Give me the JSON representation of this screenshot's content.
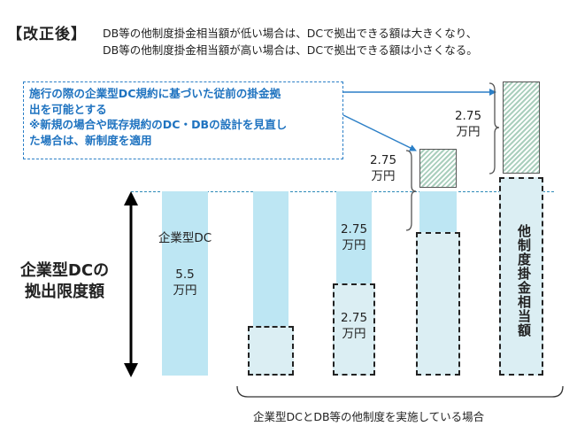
{
  "header": {
    "tag": "【改正後】",
    "line1": "DB等の他制度掛金相当額が低い場合は、DCで拠出できる額は大きくなり、",
    "line2": "DB等の他制度掛金相当額が高い場合は、DCで拠出できる額は小さくなる。"
  },
  "callout": {
    "line1": "施行の際の企業型DC規約に基づいた従前の掛金拠",
    "line2": "出を可能とする",
    "line3": "※新規の場合や既存規約のDC・DBの設計を見直し",
    "line4": "た場合は、新制度を適用"
  },
  "side_label": {
    "line1": "企業型DCの",
    "line2": "拠出限度額"
  },
  "bars": {
    "b1_top": "企業型DC",
    "b1_value": "5.5",
    "b1_unit": "万円",
    "b3_top_value": "2.75",
    "b3_top_unit": "万円",
    "b3_bottom_value": "2.75",
    "b3_bottom_unit": "万円",
    "b4_value": "2.75",
    "b4_unit": "万円",
    "b5_value": "2.75",
    "b5_unit": "万円",
    "b5_vertical": "他制度掛金相当額"
  },
  "footer": "企業型DCとDB等の他制度を実施している場合",
  "colors": {
    "callout_text": "#1f73c0",
    "callout_border": "#2b7fc7",
    "dc_bar": "#bde6f3",
    "other_plan_box": "#dbeef3",
    "hatch": "#aacfbd"
  }
}
